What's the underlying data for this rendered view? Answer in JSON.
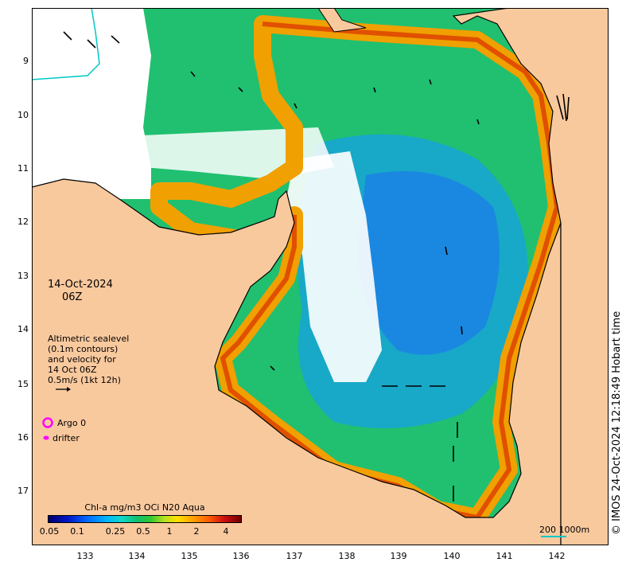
{
  "map": {
    "colors": {
      "land": "#f9c99e",
      "no_data": "#ffffff",
      "coastline": "#000000",
      "scale_bar": "#00c8c8",
      "argo_marker": "#ff00ff",
      "drifter_marker": "#ff00ff"
    },
    "y_axis_labels": [
      "9",
      "10",
      "11",
      "12",
      "13",
      "14",
      "15",
      "16",
      "17"
    ],
    "x_axis_labels": [
      "133",
      "134",
      "135",
      "136",
      "137",
      "138",
      "139",
      "140",
      "141",
      "142"
    ],
    "date": "14-Oct-2024",
    "time": "06Z",
    "sealevel_note": [
      "Altimetric sealevel",
      "(0.1m contours)",
      "and velocity for",
      "14 Oct 06Z",
      "0.5m/s (1kt 12h)"
    ],
    "legend": {
      "argo_label": "Argo 0",
      "drifter_label": "drifter"
    },
    "colorbar": {
      "title": "Chl-a mg/m3 OCi N20 Aqua",
      "ticks": [
        "0.05",
        "0.1",
        "0.25",
        "0.5",
        "1",
        "2",
        "4"
      ]
    },
    "scale_bar_label": "200  1000m",
    "stamp": "© IMOS 24-Oct-2024 12:18:49 Hobart time"
  }
}
